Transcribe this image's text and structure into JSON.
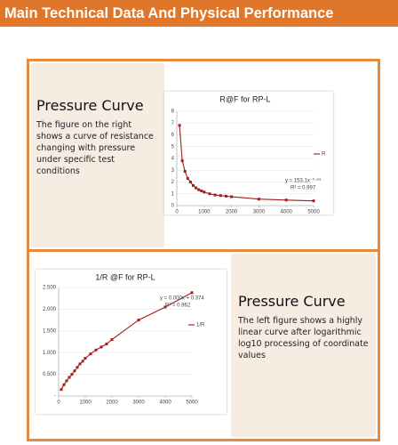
{
  "header": {
    "title": "Main Technical Data And Physical Performance"
  },
  "panels": [
    {
      "title": "Pressure Curve",
      "text": "The figure on the right shows a curve of resistance changing with pressure under specific test conditions"
    },
    {
      "title": "Pressure Curve",
      "text": "The left figure shows a highly linear curve after logarithmic log10 processing of coordinate values"
    }
  ],
  "chart_data": [
    {
      "type": "line",
      "title": "R@F  for RP-L",
      "x": [
        100,
        200,
        300,
        400,
        500,
        600,
        700,
        800,
        900,
        1000,
        1200,
        1400,
        1600,
        1800,
        2000,
        3000,
        4000,
        5000
      ],
      "series": [
        {
          "name": "R",
          "color": "#a31c1c",
          "values": [
            6.8,
            3.8,
            2.9,
            2.3,
            2.0,
            1.7,
            1.5,
            1.35,
            1.25,
            1.15,
            1.0,
            0.9,
            0.85,
            0.8,
            0.75,
            0.55,
            0.47,
            0.4
          ]
        }
      ],
      "xlim": [
        0,
        5000
      ],
      "xticks": [
        0,
        1000,
        2000,
        3000,
        4000,
        5000
      ],
      "ylim": [
        0,
        8
      ],
      "yticks": [
        0,
        1,
        2,
        3,
        4,
        5,
        6,
        7,
        8
      ],
      "annotations": [
        "y = 153.1x⁻⁰·⁶⁹",
        "R² = 0.997"
      ],
      "grid": true
    },
    {
      "type": "line",
      "title": "1/R @F for RP-L",
      "x": [
        100,
        200,
        300,
        400,
        500,
        600,
        700,
        800,
        900,
        1000,
        1200,
        1400,
        1600,
        1800,
        2000,
        3000,
        4000,
        5000
      ],
      "series": [
        {
          "name": "1/R",
          "color": "#a31c1c",
          "values": [
            0.15,
            0.26,
            0.35,
            0.43,
            0.5,
            0.58,
            0.66,
            0.74,
            0.8,
            0.87,
            0.97,
            1.06,
            1.13,
            1.2,
            1.3,
            1.75,
            2.05,
            2.38
          ]
        }
      ],
      "xlim": [
        0,
        5000
      ],
      "xticks": [
        0,
        1000,
        2000,
        3000,
        4000,
        5000
      ],
      "ylim": [
        0,
        2.5
      ],
      "yticks": [
        {
          "value": 0,
          "label": "-"
        },
        {
          "value": 0.5,
          "label": "0.500"
        },
        {
          "value": 1,
          "label": "1.000"
        },
        {
          "value": 1.5,
          "label": "1.500"
        },
        {
          "value": 2,
          "label": "2.000"
        },
        {
          "value": 2.5,
          "label": "2.500"
        }
      ],
      "annotations": [
        "y = 0.000x + 0.374",
        "R² = 0.962"
      ],
      "grid": true
    }
  ]
}
